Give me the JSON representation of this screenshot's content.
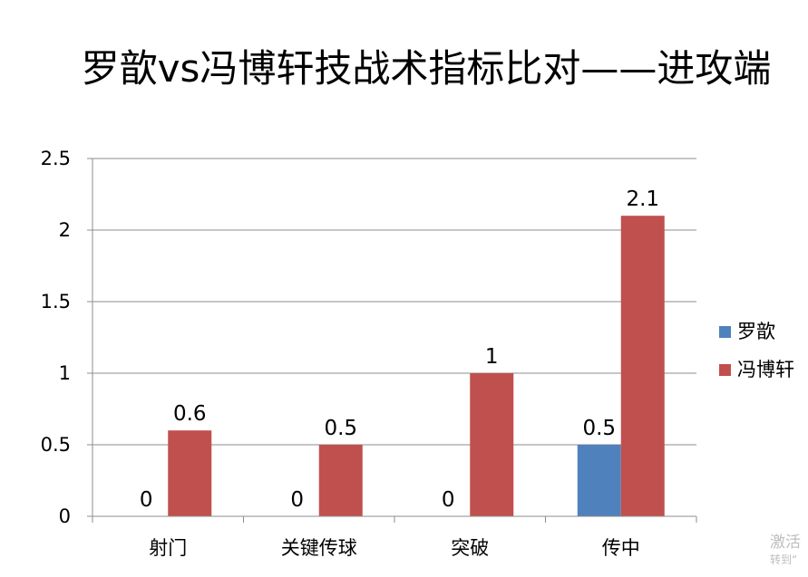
{
  "chart_data": {
    "type": "bar",
    "title": "罗歆vs冯博轩技战术指标比对——进攻端",
    "categories": [
      "射门",
      "关键传球",
      "突破",
      "传中"
    ],
    "series": [
      {
        "name": "罗歆",
        "color": "#4f81bd",
        "values": [
          0,
          0,
          0,
          0.5
        ]
      },
      {
        "name": "冯博轩",
        "color": "#c0504d",
        "values": [
          0.6,
          0.5,
          1,
          2.1
        ]
      }
    ],
    "ylim": [
      0,
      2.5
    ],
    "yticks": [
      "0",
      "0.5",
      "1",
      "1.5",
      "2",
      "2.5"
    ],
    "data_labels": [
      [
        "0",
        "0",
        "0",
        "0.5"
      ],
      [
        "0.6",
        "0.5",
        "1",
        "2.1"
      ]
    ],
    "grid": true,
    "legend": "right"
  },
  "watermark": {
    "line1": "激活",
    "line2": "转到“"
  }
}
